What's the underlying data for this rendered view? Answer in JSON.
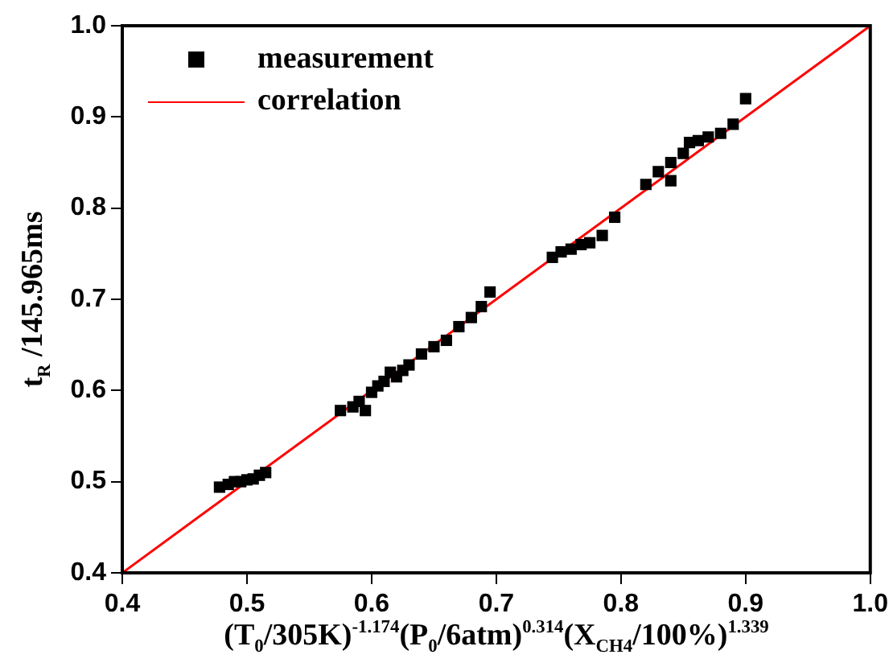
{
  "chart_data": {
    "type": "scatter",
    "xlabel": "(T$_{0}$/305K)$^{-1.174}$(P$_{0}$/6atm)$^{0.314}$(X$_{CH4}$/100%)$^{1.339}$",
    "ylabel": "t$_{R}$ /145.965ms",
    "xlim": [
      0.4,
      1.0
    ],
    "ylim": [
      0.4,
      1.0
    ],
    "xticks": [
      0.4,
      0.5,
      0.6,
      0.7,
      0.8,
      0.9,
      {
        "value": 1.0,
        "label": "1.0"
      }
    ],
    "yticks": [
      0.4,
      0.5,
      0.6,
      0.7,
      0.8,
      0.9,
      {
        "value": 1.0,
        "label": "1.0"
      }
    ],
    "grid": false,
    "legend": "top left",
    "series": [
      {
        "name": "measurement",
        "marker": "square",
        "color": "#000000",
        "x": [
          0.478,
          0.485,
          0.49,
          0.495,
          0.5,
          0.505,
          0.51,
          0.515,
          0.575,
          0.585,
          0.59,
          0.595,
          0.6,
          0.605,
          0.61,
          0.615,
          0.62,
          0.625,
          0.63,
          0.64,
          0.65,
          0.66,
          0.67,
          0.68,
          0.688,
          0.695,
          0.745,
          0.752,
          0.76,
          0.768,
          0.775,
          0.785,
          0.795,
          0.82,
          0.83,
          0.84,
          0.84,
          0.85,
          0.855,
          0.862,
          0.87,
          0.88,
          0.89,
          0.9
        ],
        "values": [
          0.494,
          0.497,
          0.5,
          0.5,
          0.502,
          0.503,
          0.507,
          0.51,
          0.578,
          0.582,
          0.588,
          0.578,
          0.598,
          0.605,
          0.61,
          0.62,
          0.615,
          0.622,
          0.628,
          0.64,
          0.648,
          0.655,
          0.67,
          0.68,
          0.692,
          0.708,
          0.746,
          0.752,
          0.755,
          0.76,
          0.762,
          0.77,
          0.79,
          0.826,
          0.84,
          0.83,
          0.85,
          0.86,
          0.872,
          0.874,
          0.878,
          0.882,
          0.892,
          0.92
        ]
      },
      {
        "name": "correlation",
        "type": "line",
        "marker": "none",
        "line_style": "solid",
        "color": "#ff0000",
        "x": [
          0.4,
          1.0
        ],
        "values": [
          0.4,
          1.0
        ]
      }
    ]
  }
}
